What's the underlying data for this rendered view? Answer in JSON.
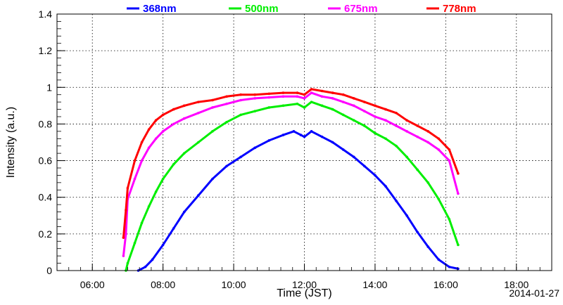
{
  "chart_data": {
    "type": "scatter",
    "title": "",
    "xlabel": "Time (JST)",
    "ylabel": "Intensity (a.u.)",
    "date_label": "2014-01-27",
    "xlim_hours": [
      5.0,
      19.0
    ],
    "ylim": [
      0,
      1.4
    ],
    "x_ticks": [
      {
        "value": 6,
        "label": "06:00"
      },
      {
        "value": 8,
        "label": "08:00"
      },
      {
        "value": 10,
        "label": "10:00"
      },
      {
        "value": 12,
        "label": "12:00"
      },
      {
        "value": 14,
        "label": "14:00"
      },
      {
        "value": 16,
        "label": "16:00"
      },
      {
        "value": 18,
        "label": "18:00"
      }
    ],
    "y_ticks": [
      {
        "value": 0,
        "label": "0"
      },
      {
        "value": 0.2,
        "label": "0.2"
      },
      {
        "value": 0.4,
        "label": "0.4"
      },
      {
        "value": 0.6,
        "label": "0.6"
      },
      {
        "value": 0.8,
        "label": "0.8"
      },
      {
        "value": 1.0,
        "label": "1"
      },
      {
        "value": 1.2,
        "label": "1.2"
      },
      {
        "value": 1.4,
        "label": "1.4"
      }
    ],
    "grid": true,
    "legend_position": "top",
    "series": [
      {
        "name": "368nm",
        "color": "#0000ff",
        "x": [
          7.3,
          7.5,
          7.7,
          8.0,
          8.3,
          8.6,
          9.0,
          9.4,
          9.8,
          10.2,
          10.6,
          11.0,
          11.4,
          11.7,
          11.9,
          12.0,
          12.2,
          12.5,
          12.8,
          13.1,
          13.4,
          13.7,
          14.0,
          14.3,
          14.6,
          14.9,
          15.2,
          15.5,
          15.8,
          16.1,
          16.35
        ],
        "y": [
          0.0,
          0.02,
          0.06,
          0.14,
          0.23,
          0.32,
          0.41,
          0.5,
          0.57,
          0.62,
          0.67,
          0.71,
          0.74,
          0.76,
          0.74,
          0.73,
          0.76,
          0.73,
          0.7,
          0.66,
          0.62,
          0.57,
          0.52,
          0.46,
          0.38,
          0.3,
          0.21,
          0.13,
          0.06,
          0.02,
          0.01
        ]
      },
      {
        "name": "500nm",
        "color": "#00ee00",
        "x": [
          6.95,
          7.0,
          7.2,
          7.4,
          7.6,
          7.8,
          8.0,
          8.3,
          8.6,
          9.0,
          9.4,
          9.8,
          10.2,
          10.6,
          11.0,
          11.4,
          11.8,
          12.0,
          12.2,
          12.5,
          12.8,
          13.1,
          13.4,
          13.7,
          14.0,
          14.3,
          14.6,
          14.9,
          15.2,
          15.5,
          15.8,
          16.1,
          16.35
        ],
        "y": [
          0.0,
          0.04,
          0.15,
          0.26,
          0.35,
          0.43,
          0.5,
          0.58,
          0.64,
          0.7,
          0.76,
          0.81,
          0.85,
          0.87,
          0.89,
          0.9,
          0.91,
          0.89,
          0.92,
          0.9,
          0.88,
          0.85,
          0.82,
          0.79,
          0.75,
          0.72,
          0.68,
          0.62,
          0.55,
          0.48,
          0.39,
          0.28,
          0.14
        ]
      },
      {
        "name": "675nm",
        "color": "#ff00ff",
        "x": [
          6.88,
          6.95,
          7.0,
          7.2,
          7.4,
          7.6,
          7.8,
          8.0,
          8.3,
          8.6,
          9.0,
          9.4,
          9.8,
          10.2,
          10.6,
          11.0,
          11.4,
          11.8,
          12.0,
          12.2,
          12.5,
          12.8,
          13.1,
          13.4,
          13.7,
          14.0,
          14.3,
          14.6,
          14.9,
          15.2,
          15.5,
          15.8,
          16.1,
          16.35
        ],
        "y": [
          0.08,
          0.2,
          0.39,
          0.5,
          0.6,
          0.67,
          0.72,
          0.76,
          0.8,
          0.83,
          0.86,
          0.89,
          0.91,
          0.93,
          0.94,
          0.945,
          0.95,
          0.95,
          0.94,
          0.97,
          0.95,
          0.94,
          0.92,
          0.9,
          0.87,
          0.84,
          0.82,
          0.79,
          0.76,
          0.73,
          0.7,
          0.66,
          0.6,
          0.42
        ]
      },
      {
        "name": "778nm",
        "color": "#ff0000",
        "x": [
          6.88,
          6.95,
          7.0,
          7.2,
          7.4,
          7.6,
          7.8,
          8.0,
          8.3,
          8.6,
          9.0,
          9.4,
          9.8,
          10.2,
          10.6,
          11.0,
          11.4,
          11.8,
          12.0,
          12.2,
          12.5,
          12.8,
          13.1,
          13.4,
          13.7,
          14.0,
          14.3,
          14.6,
          14.9,
          15.2,
          15.5,
          15.8,
          16.1,
          16.35
        ],
        "y": [
          0.18,
          0.33,
          0.45,
          0.6,
          0.7,
          0.77,
          0.82,
          0.85,
          0.88,
          0.9,
          0.92,
          0.93,
          0.95,
          0.96,
          0.96,
          0.965,
          0.97,
          0.97,
          0.96,
          0.99,
          0.98,
          0.97,
          0.96,
          0.94,
          0.92,
          0.9,
          0.88,
          0.86,
          0.82,
          0.79,
          0.76,
          0.72,
          0.66,
          0.53
        ]
      }
    ]
  }
}
